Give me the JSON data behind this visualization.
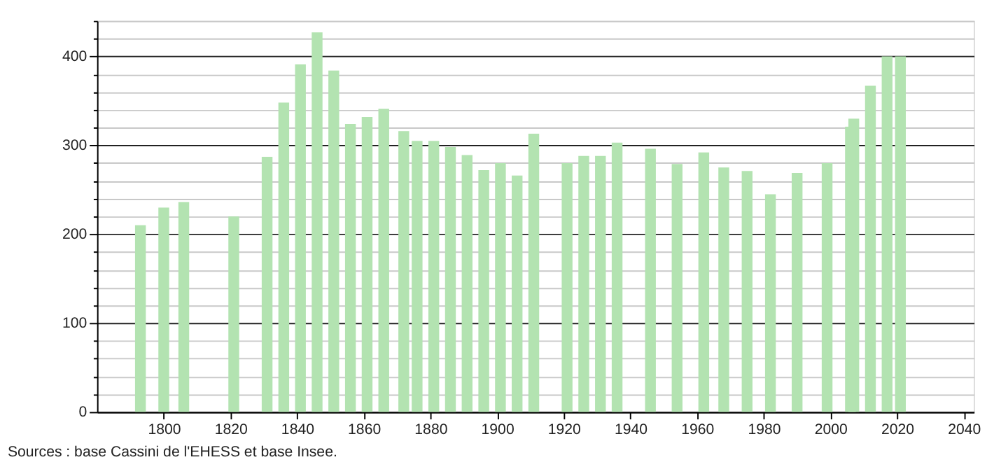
{
  "chart_data": {
    "type": "bar",
    "color": "#b3e3b1",
    "x": [
      1793,
      1800,
      1806,
      1821,
      1831,
      1836,
      1841,
      1846,
      1851,
      1856,
      1861,
      1866,
      1872,
      1876,
      1881,
      1886,
      1891,
      1896,
      1901,
      1906,
      1911,
      1921,
      1926,
      1931,
      1936,
      1946,
      1954,
      1962,
      1968,
      1975,
      1982,
      1990,
      1999,
      2006,
      2007,
      2012,
      2017,
      2021
    ],
    "values": [
      210,
      230,
      236,
      220,
      287,
      348,
      391,
      427,
      384,
      324,
      332,
      341,
      316,
      305,
      305,
      298,
      289,
      272,
      280,
      266,
      313,
      280,
      288,
      288,
      303,
      296,
      279,
      292,
      275,
      271,
      245,
      269,
      280,
      321,
      330,
      367,
      400,
      400
    ],
    "xlim": [
      1780,
      2043
    ],
    "xticks": [
      1800,
      1820,
      1840,
      1860,
      1880,
      1900,
      1920,
      1940,
      1960,
      1980,
      2000,
      2020,
      2040
    ],
    "ylim": [
      0,
      440
    ],
    "yticks": [
      0,
      {
        "value": 20,
        "label": null
      },
      {
        "value": 40,
        "label": null
      },
      {
        "value": 60,
        "label": null
      },
      {
        "value": 80,
        "label": null
      },
      100,
      {
        "value": 120,
        "label": null
      },
      {
        "value": 140,
        "label": null
      },
      {
        "value": 160,
        "label": null
      },
      {
        "value": 180,
        "label": null
      },
      200,
      {
        "value": 220,
        "label": null
      },
      {
        "value": 240,
        "label": null
      },
      {
        "value": 260,
        "label": null
      },
      {
        "value": 280,
        "label": null
      },
      300,
      {
        "value": 320,
        "label": null
      },
      {
        "value": 340,
        "label": null
      },
      {
        "value": 360,
        "label": null
      },
      {
        "value": 380,
        "label": null
      },
      400,
      {
        "value": 420,
        "label": null
      },
      {
        "value": 440,
        "label": null
      }
    ],
    "grid": "y",
    "annotations": [
      "Sources : base Cassini de l'EHESS et base Insee."
    ]
  }
}
